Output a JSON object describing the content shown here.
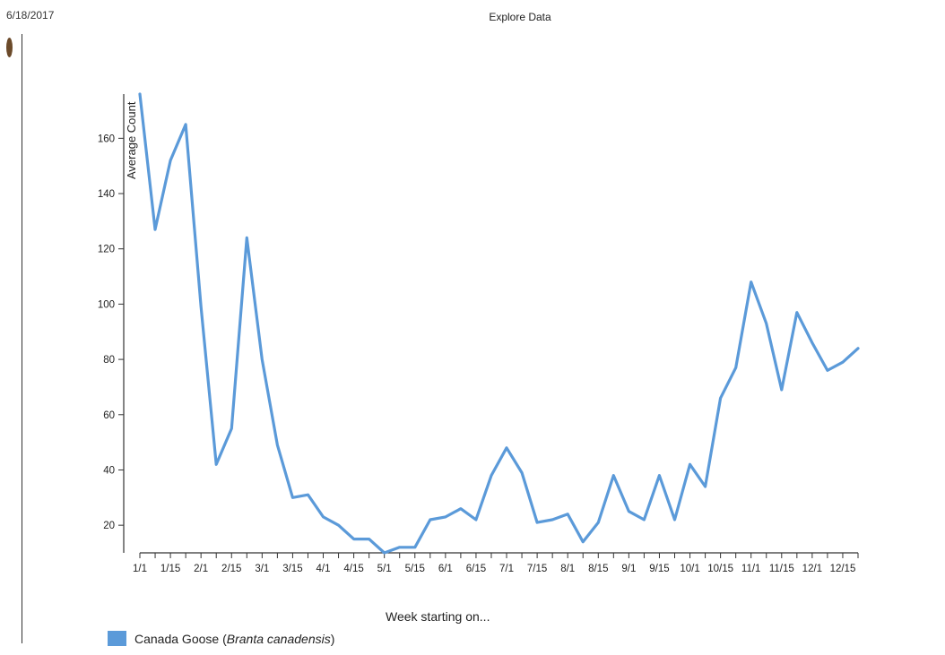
{
  "header": {
    "date": "6/18/2017",
    "title": "Explore Data"
  },
  "colors": {
    "series": "#5b9ad9",
    "axis": "#333333"
  },
  "chart_data": {
    "type": "line",
    "title": "",
    "xlabel": "Week starting on...",
    "ylabel": "Average Count",
    "ylim": [
      10,
      176
    ],
    "yticks": [
      20,
      40,
      60,
      80,
      100,
      120,
      140,
      160
    ],
    "grid": false,
    "legend_position": "bottom-left",
    "x": [
      "1/1",
      "1/8",
      "1/15",
      "1/22",
      "2/1",
      "2/8",
      "2/15",
      "2/22",
      "3/1",
      "3/8",
      "3/15",
      "3/22",
      "4/1",
      "4/8",
      "4/15",
      "4/22",
      "5/1",
      "5/8",
      "5/15",
      "5/22",
      "6/1",
      "6/8",
      "6/15",
      "6/22",
      "7/1",
      "7/8",
      "7/15",
      "7/22",
      "8/1",
      "8/8",
      "8/15",
      "8/22",
      "9/1",
      "9/8",
      "9/15",
      "9/22",
      "10/1",
      "10/8",
      "10/15",
      "10/22",
      "11/1",
      "11/8",
      "11/15",
      "11/22",
      "12/1",
      "12/8",
      "12/15",
      "12/22"
    ],
    "x_tick_labels": [
      "1/1",
      "1/15",
      "2/1",
      "2/15",
      "3/1",
      "3/15",
      "4/1",
      "4/15",
      "5/1",
      "5/15",
      "6/1",
      "6/15",
      "7/1",
      "7/15",
      "8/1",
      "8/15",
      "9/1",
      "9/15",
      "10/1",
      "10/15",
      "11/1",
      "11/15",
      "12/1",
      "12/15"
    ],
    "series": [
      {
        "name": "Canada Goose",
        "scientific_name": "Branta canadensis",
        "values": [
          176,
          127,
          152,
          165,
          99,
          42,
          55,
          124,
          80,
          49,
          30,
          31,
          23,
          20,
          15,
          15,
          10,
          12,
          12,
          22,
          23,
          26,
          22,
          38,
          48,
          39,
          21,
          22,
          24,
          14,
          21,
          38,
          25,
          22,
          38,
          22,
          42,
          34,
          66,
          77,
          108,
          93,
          69,
          97,
          86,
          76,
          79,
          84
        ]
      }
    ]
  }
}
